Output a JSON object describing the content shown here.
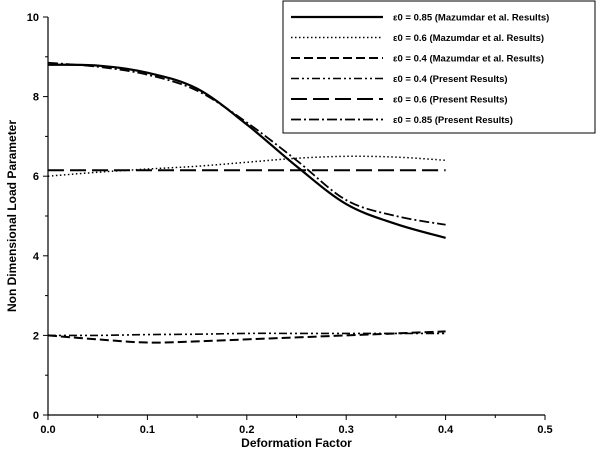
{
  "chart_data": {
    "type": "line",
    "title": "",
    "xlabel": "Deformation Factor",
    "ylabel": "Non Dimensional Load Parameter",
    "xlim": [
      0,
      0.5
    ],
    "ylim": [
      0,
      10
    ],
    "xticks": [
      "0.0",
      "0.1",
      "0.2",
      "0.3",
      "0.4",
      "0.5"
    ],
    "yticks": [
      "0",
      "2",
      "4",
      "6",
      "8",
      "10"
    ],
    "grid": false,
    "legend_position": "top-right",
    "series": [
      {
        "name": "ε0 = 0.85 (Mazumdar et al. Results)",
        "style": "solid",
        "x": [
          0,
          0.05,
          0.1,
          0.15,
          0.2,
          0.25,
          0.3,
          0.35,
          0.4
        ],
        "y": [
          8.8,
          8.78,
          8.6,
          8.2,
          7.3,
          6.25,
          5.3,
          4.8,
          4.45
        ]
      },
      {
        "name": "ε0 = 0.6 (Mazumdar et al. Results)",
        "style": "dotted",
        "x": [
          0,
          0.05,
          0.1,
          0.15,
          0.2,
          0.25,
          0.3,
          0.35,
          0.4
        ],
        "y": [
          6.0,
          6.1,
          6.18,
          6.25,
          6.35,
          6.45,
          6.5,
          6.48,
          6.4
        ]
      },
      {
        "name": "ε0 = 0.4 (Mazumdar et al. Results)",
        "style": "dashed",
        "x": [
          0,
          0.05,
          0.1,
          0.15,
          0.2,
          0.25,
          0.3,
          0.35,
          0.4
        ],
        "y": [
          2.0,
          1.9,
          1.82,
          1.85,
          1.9,
          1.95,
          2.0,
          2.05,
          2.1
        ]
      },
      {
        "name": "ε0 = 0.4 (Present Results)",
        "style": "dash-dot-dot",
        "x": [
          0,
          0.05,
          0.1,
          0.15,
          0.2,
          0.25,
          0.3,
          0.35,
          0.4
        ],
        "y": [
          2.0,
          2.0,
          2.02,
          2.03,
          2.05,
          2.05,
          2.05,
          2.05,
          2.05
        ]
      },
      {
        "name": "ε0 = 0.6 (Present Results)",
        "style": "long-dash",
        "x": [
          0,
          0.05,
          0.1,
          0.15,
          0.2,
          0.25,
          0.3,
          0.35,
          0.4
        ],
        "y": [
          6.15,
          6.15,
          6.15,
          6.15,
          6.15,
          6.15,
          6.15,
          6.15,
          6.15
        ]
      },
      {
        "name": "ε0 = 0.85 (Present Results)",
        "style": "dash-dot",
        "x": [
          0,
          0.05,
          0.1,
          0.15,
          0.2,
          0.25,
          0.3,
          0.35,
          0.4
        ],
        "y": [
          8.85,
          8.75,
          8.55,
          8.15,
          7.35,
          6.4,
          5.4,
          5.0,
          4.78
        ]
      }
    ]
  }
}
